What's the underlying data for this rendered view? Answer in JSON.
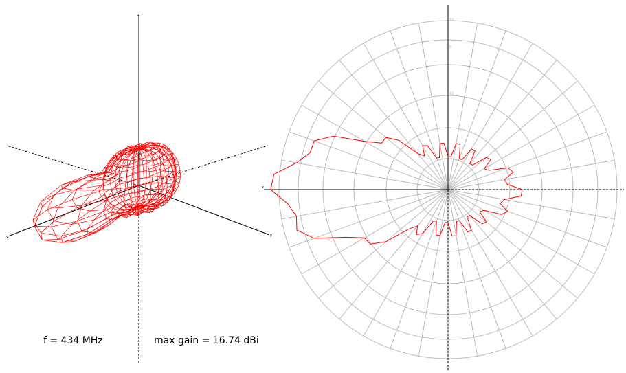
{
  "frequency_label": "f = 434 MHz",
  "gain_label": "max gain = 16.74 dBi",
  "axes3d": {
    "z": "z",
    "x": "x",
    "y": "y"
  },
  "polar_axis": {
    "x": "x"
  },
  "polar_ring_labels": [
    "10",
    "5",
    "10"
  ],
  "colors": {
    "pattern": "#ff0000",
    "grid": "#bbbbbb",
    "axis": "#000000"
  }
}
